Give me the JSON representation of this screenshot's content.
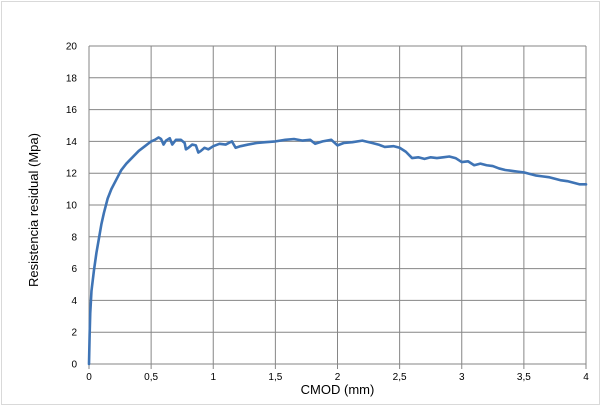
{
  "chart_data": {
    "type": "line",
    "title": "",
    "xlabel": "CMOD (mm)",
    "ylabel": "Resistencia residual  (Mpa)",
    "xlim": [
      0,
      4
    ],
    "ylim": [
      0,
      20
    ],
    "x_ticks": [
      0,
      0.5,
      1,
      1.5,
      2,
      2.5,
      3,
      3.5,
      4
    ],
    "x_tick_labels": [
      "0",
      "0,5",
      "1",
      "1,5",
      "2",
      "2,5",
      "3",
      "3,5",
      "4"
    ],
    "y_ticks": [
      0,
      2,
      4,
      6,
      8,
      10,
      12,
      14,
      16,
      18,
      20
    ],
    "y_tick_labels": [
      "0",
      "2",
      "4",
      "6",
      "8",
      "10",
      "12",
      "14",
      "16",
      "18",
      "20"
    ],
    "grid": true,
    "legend": "none",
    "series": [
      {
        "color": "#3f74b5",
        "points": [
          [
            0,
            0
          ],
          [
            0.005,
            1.8
          ],
          [
            0.01,
            3.2
          ],
          [
            0.02,
            4.6
          ],
          [
            0.04,
            5.9
          ],
          [
            0.06,
            7.0
          ],
          [
            0.08,
            7.9
          ],
          [
            0.1,
            8.8
          ],
          [
            0.12,
            9.5
          ],
          [
            0.15,
            10.4
          ],
          [
            0.18,
            11.0
          ],
          [
            0.22,
            11.6
          ],
          [
            0.26,
            12.2
          ],
          [
            0.3,
            12.6
          ],
          [
            0.35,
            13.0
          ],
          [
            0.4,
            13.4
          ],
          [
            0.45,
            13.7
          ],
          [
            0.5,
            14.0
          ],
          [
            0.53,
            14.1
          ],
          [
            0.56,
            14.25
          ],
          [
            0.58,
            14.15
          ],
          [
            0.6,
            13.8
          ],
          [
            0.62,
            14.05
          ],
          [
            0.65,
            14.2
          ],
          [
            0.67,
            13.8
          ],
          [
            0.7,
            14.1
          ],
          [
            0.74,
            14.1
          ],
          [
            0.77,
            13.9
          ],
          [
            0.78,
            13.5
          ],
          [
            0.8,
            13.6
          ],
          [
            0.83,
            13.8
          ],
          [
            0.86,
            13.75
          ],
          [
            0.88,
            13.3
          ],
          [
            0.9,
            13.4
          ],
          [
            0.93,
            13.6
          ],
          [
            0.96,
            13.5
          ],
          [
            1.0,
            13.7
          ],
          [
            1.05,
            13.85
          ],
          [
            1.1,
            13.8
          ],
          [
            1.15,
            14.0
          ],
          [
            1.18,
            13.6
          ],
          [
            1.22,
            13.7
          ],
          [
            1.28,
            13.8
          ],
          [
            1.35,
            13.9
          ],
          [
            1.42,
            13.95
          ],
          [
            1.5,
            14.0
          ],
          [
            1.58,
            14.1
          ],
          [
            1.65,
            14.15
          ],
          [
            1.72,
            14.05
          ],
          [
            1.78,
            14.1
          ],
          [
            1.82,
            13.85
          ],
          [
            1.88,
            14.0
          ],
          [
            1.95,
            14.1
          ],
          [
            2.0,
            13.75
          ],
          [
            2.05,
            13.9
          ],
          [
            2.12,
            13.95
          ],
          [
            2.2,
            14.05
          ],
          [
            2.28,
            13.9
          ],
          [
            2.33,
            13.8
          ],
          [
            2.38,
            13.65
          ],
          [
            2.45,
            13.7
          ],
          [
            2.5,
            13.6
          ],
          [
            2.55,
            13.35
          ],
          [
            2.6,
            12.95
          ],
          [
            2.65,
            13.0
          ],
          [
            2.7,
            12.9
          ],
          [
            2.75,
            13.0
          ],
          [
            2.8,
            12.95
          ],
          [
            2.85,
            13.0
          ],
          [
            2.9,
            13.05
          ],
          [
            2.95,
            12.95
          ],
          [
            3.0,
            12.7
          ],
          [
            3.05,
            12.75
          ],
          [
            3.1,
            12.5
          ],
          [
            3.15,
            12.6
          ],
          [
            3.2,
            12.5
          ],
          [
            3.25,
            12.45
          ],
          [
            3.3,
            12.3
          ],
          [
            3.35,
            12.2
          ],
          [
            3.4,
            12.15
          ],
          [
            3.45,
            12.1
          ],
          [
            3.5,
            12.05
          ],
          [
            3.55,
            11.95
          ],
          [
            3.6,
            11.85
          ],
          [
            3.65,
            11.8
          ],
          [
            3.7,
            11.75
          ],
          [
            3.75,
            11.65
          ],
          [
            3.8,
            11.55
          ],
          [
            3.85,
            11.5
          ],
          [
            3.9,
            11.4
          ],
          [
            3.95,
            11.3
          ],
          [
            4.0,
            11.3
          ]
        ]
      }
    ]
  }
}
